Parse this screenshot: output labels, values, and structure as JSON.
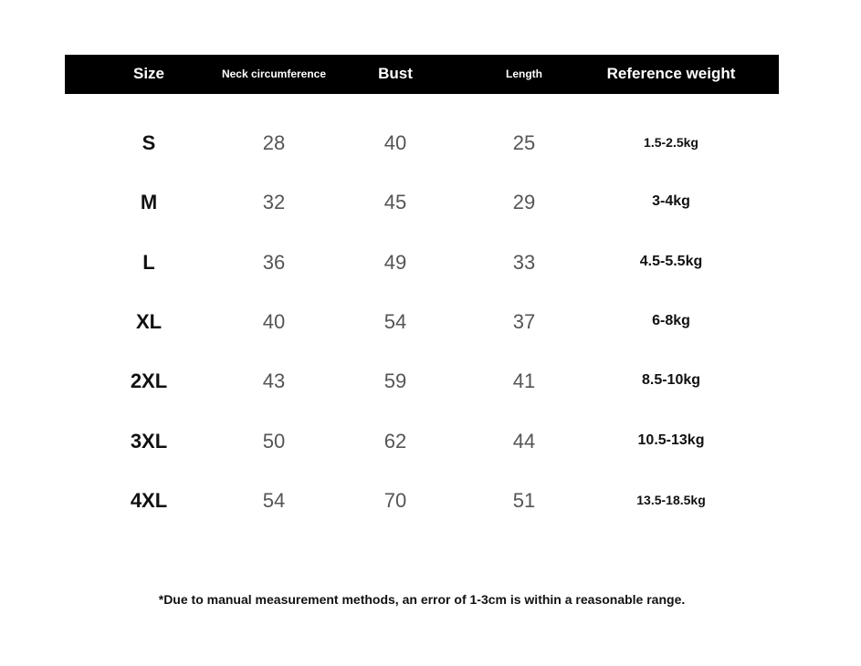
{
  "table": {
    "header": [
      "Size",
      "Neck circumference",
      "Bust",
      "Length",
      "Reference weight"
    ],
    "rows": [
      [
        "S",
        "28",
        "40",
        "25",
        "1.5-2.5kg"
      ],
      [
        "M",
        "32",
        "45",
        "29",
        "3-4kg"
      ],
      [
        "L",
        "36",
        "49",
        "33",
        "4.5-5.5kg"
      ],
      [
        "XL",
        "40",
        "54",
        "37",
        "6-8kg"
      ],
      [
        "2XL",
        "43",
        "59",
        "41",
        "8.5-10kg"
      ],
      [
        "3XL",
        "50",
        "62",
        "44",
        "10.5-13kg"
      ],
      [
        "4XL",
        "54",
        "70",
        "51",
        "13.5-18.5kg"
      ]
    ]
  },
  "footnote": "*Due to manual measurement methods, an error of 1-3cm is within a reasonable range."
}
